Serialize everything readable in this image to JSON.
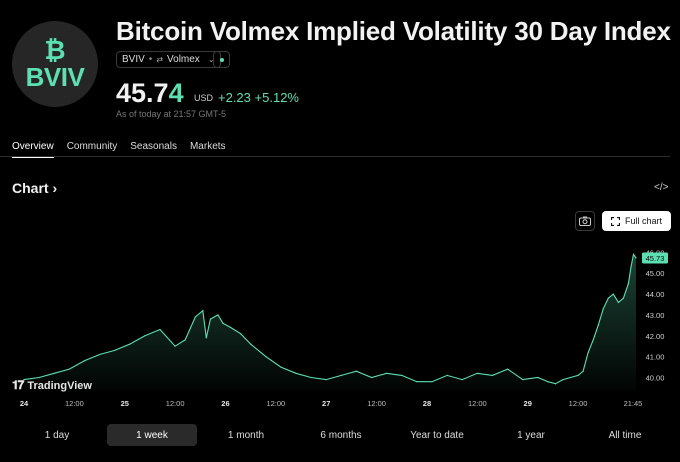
{
  "header": {
    "logo_symbol": "₿",
    "logo_ticker": "BVIV",
    "title": "Bitcoin Volmex Implied Volatility 30 Day Index",
    "badge_ticker": "BVIV",
    "badge_exchange": "Volmex",
    "price_main": "45.7",
    "price_last_digit": "4",
    "currency": "USD",
    "change": "+2.23",
    "change_pct": "+5.12%",
    "as_of": "As of today at 21:57 GMT-5"
  },
  "tabs": [
    "Overview",
    "Community",
    "Seasonals",
    "Markets"
  ],
  "chart_section": {
    "title": "Chart",
    "chevron": "›",
    "embed_icon": "</>",
    "full_chart_label": "Full chart",
    "tv_label": "TradingView"
  },
  "ranges": [
    "1 day",
    "1 week",
    "1 month",
    "6 months",
    "Year to date",
    "1 year",
    "All time"
  ],
  "colors": {
    "accent": "#5ce0b2",
    "background": "#000000"
  },
  "chart_data": {
    "type": "area",
    "title": "Chart",
    "x_ticks": [
      "24",
      "12:00",
      "25",
      "12:00",
      "26",
      "12:00",
      "27",
      "12:00",
      "28",
      "12:00",
      "29",
      "12:00",
      "21:45"
    ],
    "y_ticks": [
      40.0,
      41.0,
      42.0,
      43.0,
      44.0,
      45.0,
      46.0
    ],
    "y_tick_labels": [
      "40.00",
      "41.00",
      "42.00",
      "43.00",
      "44.00",
      "45.00",
      "46.00"
    ],
    "ylim": [
      39.4,
      46.4
    ],
    "last_value": 45.73,
    "last_label": "45.73",
    "x_range": [
      0,
      12.15
    ],
    "x": [
      0.0,
      0.3,
      0.6,
      0.9,
      1.2,
      1.5,
      1.8,
      2.1,
      2.4,
      2.7,
      3.0,
      3.2,
      3.4,
      3.55,
      3.62,
      3.7,
      3.85,
      3.95,
      4.1,
      4.3,
      4.5,
      4.8,
      5.1,
      5.4,
      5.7,
      6.0,
      6.3,
      6.6,
      6.9,
      7.2,
      7.5,
      7.8,
      8.1,
      8.4,
      8.7,
      9.0,
      9.3,
      9.6,
      9.9,
      10.2,
      10.4,
      10.55,
      10.7,
      10.85,
      11.0,
      11.1,
      11.2,
      11.3,
      11.4,
      11.5,
      11.6,
      11.7,
      11.8,
      11.9,
      12.0,
      12.05,
      12.1,
      12.15
    ],
    "values": [
      39.9,
      40.0,
      40.2,
      40.4,
      40.8,
      41.1,
      41.3,
      41.6,
      42.0,
      42.3,
      41.5,
      41.8,
      42.9,
      43.2,
      41.9,
      42.8,
      43.0,
      42.6,
      42.4,
      42.1,
      41.6,
      41.0,
      40.5,
      40.2,
      40.0,
      39.9,
      40.1,
      40.3,
      40.0,
      40.2,
      40.1,
      39.8,
      39.8,
      40.1,
      39.9,
      40.2,
      40.1,
      40.4,
      39.9,
      40.0,
      39.8,
      39.7,
      39.9,
      40.0,
      40.1,
      40.3,
      41.2,
      41.8,
      42.5,
      43.3,
      43.8,
      44.0,
      43.6,
      43.8,
      44.5,
      45.3,
      45.9,
      45.73
    ]
  }
}
